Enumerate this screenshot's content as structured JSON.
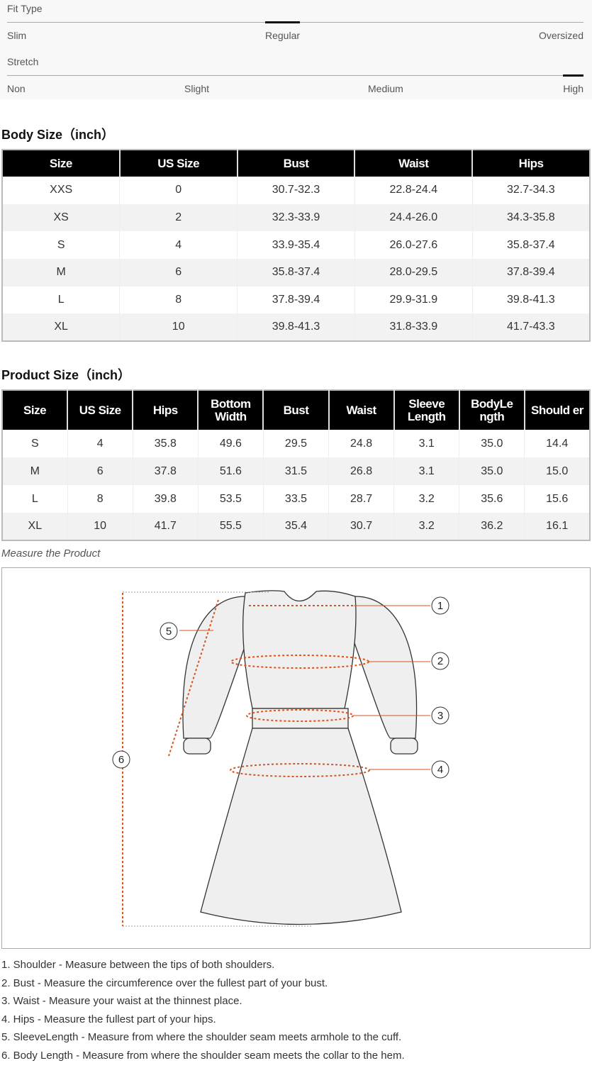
{
  "fit_type": {
    "title": "Fit Type",
    "labels": [
      "Slim",
      "Regular",
      "Oversized"
    ],
    "selected": "Regular"
  },
  "stretch": {
    "title": "Stretch",
    "labels": [
      "Non",
      "Slight",
      "Medium",
      "High"
    ],
    "selected": "High"
  },
  "body_size": {
    "title": "Body Size（inch）",
    "headers": [
      "Size",
      "US Size",
      "Bust",
      "Waist",
      "Hips"
    ],
    "rows": [
      [
        "XXS",
        "0",
        "30.7-32.3",
        "22.8-24.4",
        "32.7-34.3"
      ],
      [
        "XS",
        "2",
        "32.3-33.9",
        "24.4-26.0",
        "34.3-35.8"
      ],
      [
        "S",
        "4",
        "33.9-35.4",
        "26.0-27.6",
        "35.8-37.4"
      ],
      [
        "M",
        "6",
        "35.8-37.4",
        "28.0-29.5",
        "37.8-39.4"
      ],
      [
        "L",
        "8",
        "37.8-39.4",
        "29.9-31.9",
        "39.8-41.3"
      ],
      [
        "XL",
        "10",
        "39.8-41.3",
        "31.8-33.9",
        "41.7-43.3"
      ]
    ]
  },
  "product_size": {
    "title": "Product Size（inch）",
    "headers": [
      "Size",
      "US Size",
      "Hips",
      "Bottom Width",
      "Bust",
      "Waist",
      "Sleeve Length",
      "BodyLe ngth",
      "Should er"
    ],
    "rows": [
      [
        "S",
        "4",
        "35.8",
        "49.6",
        "29.5",
        "24.8",
        "3.1",
        "35.0",
        "14.4"
      ],
      [
        "M",
        "6",
        "37.8",
        "51.6",
        "31.5",
        "26.8",
        "3.1",
        "35.0",
        "15.0"
      ],
      [
        "L",
        "8",
        "39.8",
        "53.5",
        "33.5",
        "28.7",
        "3.2",
        "35.6",
        "15.6"
      ],
      [
        "XL",
        "10",
        "41.7",
        "55.5",
        "35.4",
        "30.7",
        "3.2",
        "36.2",
        "16.1"
      ]
    ]
  },
  "diagram": {
    "caption": "Measure the Product",
    "markers": [
      "1",
      "2",
      "3",
      "4",
      "5",
      "6"
    ],
    "accent": "#d9531e"
  },
  "notes": [
    "1. Shoulder - Measure between the tips of both shoulders.",
    "2. Bust - Measure the circumference over the fullest part of your bust.",
    "3. Waist - Measure your waist at the thinnest place.",
    "4. Hips - Measure the fullest part of your hips.",
    "5. SleeveLength - Measure from where the shoulder seam meets armhole to the cuff.",
    "6. Body Length - Measure from where the shoulder seam meets the collar to the hem."
  ]
}
